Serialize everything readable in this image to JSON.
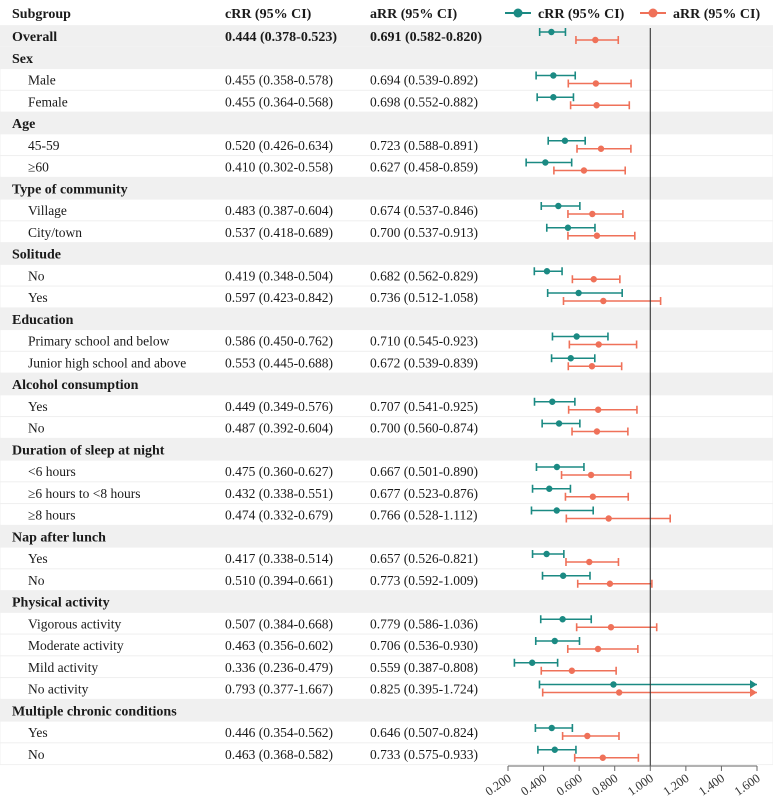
{
  "colors": {
    "crr": "#1b8a83",
    "arr": "#ef7159",
    "stripe": "#f0f0f0"
  },
  "header": {
    "subgroup": "Subgroup",
    "crr": "cRR (95% CI)",
    "arr": "aRR (95% CI)"
  },
  "legend": [
    {
      "label": "cRR (95% CI)",
      "series": "crr"
    },
    {
      "label": "aRR (95% CI)",
      "series": "arr"
    }
  ],
  "chart_data": {
    "type": "forest",
    "x_ticks": [
      "0.200",
      "0.400",
      "0.600",
      "0.800",
      "1.000",
      "1.200",
      "1.400",
      "1.600"
    ],
    "xlim": [
      0.2,
      1.6
    ],
    "reference_line": 1.0,
    "series": [
      {
        "name": "cRR (95% CI)",
        "key": "crr"
      },
      {
        "name": "aRR (95% CI)",
        "key": "arr"
      }
    ],
    "rows": [
      {
        "kind": "overall",
        "label": "Overall",
        "crr_text": "0.444 (0.378-0.523)",
        "arr_text": "0.691 (0.582-0.820)",
        "crr": [
          0.444,
          0.378,
          0.523
        ],
        "arr": [
          0.691,
          0.582,
          0.82
        ]
      },
      {
        "kind": "group",
        "label": "Sex"
      },
      {
        "kind": "item",
        "label": "Male",
        "crr_text": "0.455 (0.358-0.578)",
        "arr_text": "0.694 (0.539-0.892)",
        "crr": [
          0.455,
          0.358,
          0.578
        ],
        "arr": [
          0.694,
          0.539,
          0.892
        ]
      },
      {
        "kind": "item",
        "label": "Female",
        "crr_text": "0.455 (0.364-0.568)",
        "arr_text": "0.698 (0.552-0.882)",
        "crr": [
          0.455,
          0.364,
          0.568
        ],
        "arr": [
          0.698,
          0.552,
          0.882
        ]
      },
      {
        "kind": "group",
        "label": "Age"
      },
      {
        "kind": "item",
        "label": "45-59",
        "crr_text": "0.520 (0.426-0.634)",
        "arr_text": "0.723 (0.588-0.891)",
        "crr": [
          0.52,
          0.426,
          0.634
        ],
        "arr": [
          0.723,
          0.588,
          0.891
        ]
      },
      {
        "kind": "item",
        "label": "≥60",
        "crr_text": "0.410 (0.302-0.558)",
        "arr_text": "0.627 (0.458-0.859)",
        "crr": [
          0.41,
          0.302,
          0.558
        ],
        "arr": [
          0.627,
          0.458,
          0.859
        ]
      },
      {
        "kind": "group",
        "label": "Type of community"
      },
      {
        "kind": "item",
        "label": "Village",
        "crr_text": "0.483 (0.387-0.604)",
        "arr_text": "0.674 (0.537-0.846)",
        "crr": [
          0.483,
          0.387,
          0.604
        ],
        "arr": [
          0.674,
          0.537,
          0.846
        ]
      },
      {
        "kind": "item",
        "label": "City/town",
        "crr_text": "0.537 (0.418-0.689)",
        "arr_text": "0.700 (0.537-0.913)",
        "crr": [
          0.537,
          0.418,
          0.689
        ],
        "arr": [
          0.7,
          0.537,
          0.913
        ]
      },
      {
        "kind": "group",
        "label": "Solitude"
      },
      {
        "kind": "item",
        "label": "No",
        "crr_text": "0.419 (0.348-0.504)",
        "arr_text": "0.682 (0.562-0.829)",
        "crr": [
          0.419,
          0.348,
          0.504
        ],
        "arr": [
          0.682,
          0.562,
          0.829
        ]
      },
      {
        "kind": "item",
        "label": "Yes",
        "crr_text": "0.597 (0.423-0.842)",
        "arr_text": "0.736 (0.512-1.058)",
        "crr": [
          0.597,
          0.423,
          0.842
        ],
        "arr": [
          0.736,
          0.512,
          1.058
        ]
      },
      {
        "kind": "group",
        "label": "Education"
      },
      {
        "kind": "item",
        "label": "Primary school and below",
        "crr_text": "0.586 (0.450-0.762)",
        "arr_text": "0.710 (0.545-0.923)",
        "crr": [
          0.586,
          0.45,
          0.762
        ],
        "arr": [
          0.71,
          0.545,
          0.923
        ]
      },
      {
        "kind": "item",
        "label": "Junior high school and above",
        "crr_text": "0.553 (0.445-0.688)",
        "arr_text": "0.672 (0.539-0.839)",
        "crr": [
          0.553,
          0.445,
          0.688
        ],
        "arr": [
          0.672,
          0.539,
          0.839
        ]
      },
      {
        "kind": "group",
        "label": "Alcohol consumption"
      },
      {
        "kind": "item",
        "label": "Yes",
        "crr_text": "0.449 (0.349-0.576)",
        "arr_text": "0.707 (0.541-0.925)",
        "crr": [
          0.449,
          0.349,
          0.576
        ],
        "arr": [
          0.707,
          0.541,
          0.925
        ]
      },
      {
        "kind": "item",
        "label": "No",
        "crr_text": "0.487 (0.392-0.604)",
        "arr_text": "0.700 (0.560-0.874)",
        "crr": [
          0.487,
          0.392,
          0.604
        ],
        "arr": [
          0.7,
          0.56,
          0.874
        ]
      },
      {
        "kind": "group",
        "label": "Duration of sleep at night"
      },
      {
        "kind": "item",
        "label": "<6 hours",
        "crr_text": "0.475 (0.360-0.627)",
        "arr_text": "0.667 (0.501-0.890)",
        "crr": [
          0.475,
          0.36,
          0.627
        ],
        "arr": [
          0.667,
          0.501,
          0.89
        ]
      },
      {
        "kind": "item",
        "label": "≥6 hours to <8 hours",
        "crr_text": "0.432 (0.338-0.551)",
        "arr_text": "0.677 (0.523-0.876)",
        "crr": [
          0.432,
          0.338,
          0.551
        ],
        "arr": [
          0.677,
          0.523,
          0.876
        ]
      },
      {
        "kind": "item",
        "label": "≥8 hours",
        "crr_text": "0.474 (0.332-0.679)",
        "arr_text": "0.766 (0.528-1.112)",
        "crr": [
          0.474,
          0.332,
          0.679
        ],
        "arr": [
          0.766,
          0.528,
          1.112
        ]
      },
      {
        "kind": "group",
        "label": "Nap after lunch"
      },
      {
        "kind": "item",
        "label": "Yes",
        "crr_text": "0.417 (0.338-0.514)",
        "arr_text": "0.657 (0.526-0.821)",
        "crr": [
          0.417,
          0.338,
          0.514
        ],
        "arr": [
          0.657,
          0.526,
          0.821
        ]
      },
      {
        "kind": "item",
        "label": "No",
        "crr_text": "0.510 (0.394-0.661)",
        "arr_text": "0.773 (0.592-1.009)",
        "crr": [
          0.51,
          0.394,
          0.661
        ],
        "arr": [
          0.773,
          0.592,
          1.009
        ]
      },
      {
        "kind": "group",
        "label": "Physical activity"
      },
      {
        "kind": "item",
        "label": "Vigorous activity",
        "crr_text": "0.507 (0.384-0.668)",
        "arr_text": "0.779 (0.586-1.036)",
        "crr": [
          0.507,
          0.384,
          0.668
        ],
        "arr": [
          0.779,
          0.586,
          1.036
        ]
      },
      {
        "kind": "item",
        "label": "Moderate activity",
        "crr_text": "0.463 (0.356-0.602)",
        "arr_text": "0.706 (0.536-0.930)",
        "crr": [
          0.463,
          0.356,
          0.602
        ],
        "arr": [
          0.706,
          0.536,
          0.93
        ]
      },
      {
        "kind": "item",
        "label": "Mild activity",
        "crr_text": "0.336 (0.236-0.479)",
        "arr_text": "0.559 (0.387-0.808)",
        "crr": [
          0.336,
          0.236,
          0.479
        ],
        "arr": [
          0.559,
          0.387,
          0.808
        ]
      },
      {
        "kind": "item",
        "label": "No activity",
        "crr_text": "0.793 (0.377-1.667)",
        "arr_text": "0.825 (0.395-1.724)",
        "crr": [
          0.793,
          0.377,
          1.667
        ],
        "arr": [
          0.825,
          0.395,
          1.724
        ]
      },
      {
        "kind": "group",
        "label": "Multiple chronic conditions"
      },
      {
        "kind": "item",
        "label": "Yes",
        "crr_text": "0.446 (0.354-0.562)",
        "arr_text": "0.646 (0.507-0.824)",
        "crr": [
          0.446,
          0.354,
          0.562
        ],
        "arr": [
          0.646,
          0.507,
          0.824
        ]
      },
      {
        "kind": "item",
        "label": "No",
        "crr_text": "0.463 (0.368-0.582)",
        "arr_text": "0.733 (0.575-0.933)",
        "crr": [
          0.463,
          0.368,
          0.582
        ],
        "arr": [
          0.733,
          0.575,
          0.933
        ]
      }
    ]
  }
}
